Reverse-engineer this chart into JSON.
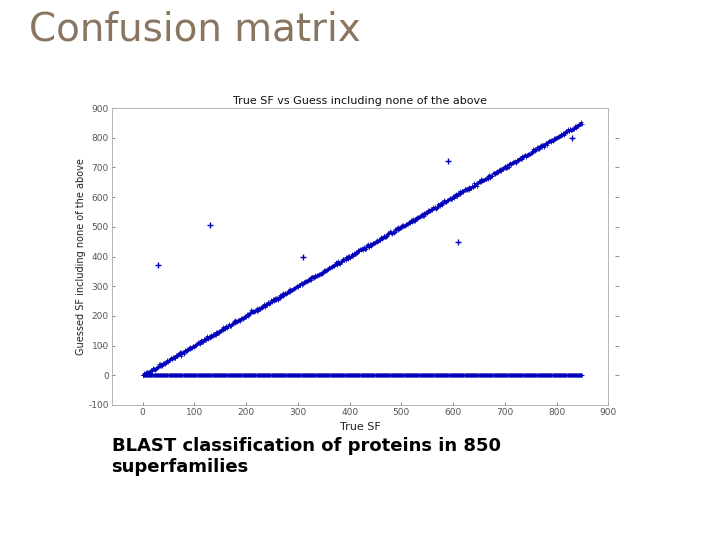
{
  "title": "Confusion matrix",
  "title_color": "#8a7560",
  "title_fontsize": 28,
  "plot_title": "True SF vs Guess including none of the above",
  "plot_title_fontsize": 8,
  "xlabel": "True SF",
  "ylabel": "Guessed SF including none of the above",
  "xlabel_fontsize": 8,
  "ylabel_fontsize": 7,
  "xlim": [
    -60,
    900
  ],
  "ylim": [
    -100,
    900
  ],
  "xticks": [
    0,
    100,
    200,
    300,
    400,
    500,
    600,
    700,
    800,
    900
  ],
  "yticks": [
    -100,
    0,
    100,
    200,
    300,
    400,
    500,
    600,
    700,
    800,
    900
  ],
  "n_superfamilies": 850,
  "point_color": "#0000bb",
  "marker": "+",
  "background_color": "#ffffff",
  "header_bar_color": "#93b0c0",
  "header_accent_color": "#c8633a",
  "caption": "BLAST classification of proteins in 850\nsuperfamilies",
  "caption_fontsize": 13,
  "caption_fontweight": "bold",
  "outlier_x": [
    30,
    130,
    310,
    590,
    610,
    830
  ],
  "outlier_y": [
    370,
    505,
    400,
    720,
    450,
    800
  ],
  "seed": 42
}
